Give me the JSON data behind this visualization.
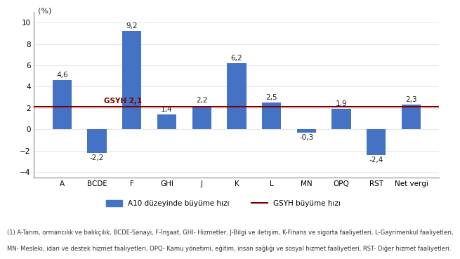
{
  "categories": [
    "A",
    "BCDE",
    "F",
    "GHI",
    "J",
    "K",
    "L",
    "MN",
    "OPQ",
    "RST",
    "Net vergi"
  ],
  "values": [
    4.6,
    -2.2,
    9.2,
    1.4,
    2.2,
    6.2,
    2.5,
    -0.3,
    1.9,
    -2.4,
    2.3
  ],
  "bar_color": "#4472C4",
  "gsyh_line_value": 2.1,
  "gsyh_line_color": "#7B0000",
  "gsyh_label": "GSYH 2,1",
  "ylabel": "(%)",
  "ylim": [
    -4.5,
    11.0
  ],
  "yticks": [
    -4,
    -2,
    0,
    2,
    4,
    6,
    8,
    10
  ],
  "legend_bar_label": "A10 düzeyinde büyüme hızı",
  "legend_line_label": "GSYH büyüme hızı",
  "footnote_line1": "(1) A-Tarım, ormancılık ve balıkçılık, BCDE-Sanayi, F-İnşaat, GHI- Hizmetler, J-Bilgi ve iletişim, K-Finans ve sigorta faaliyetleri, L-Gayrimenkul faaliyetleri,",
  "footnote_line2": "MN- Mesleki, idari ve destek hizmet faaliyetleri, OPQ- Kamu yönetimi, eğitim, insan sağlığı ve sosyal hizmet faaliyetleri, RST- Diğer hizmet faaliyetleri.",
  "background_color": "#FFFFFF",
  "bar_width": 0.55
}
